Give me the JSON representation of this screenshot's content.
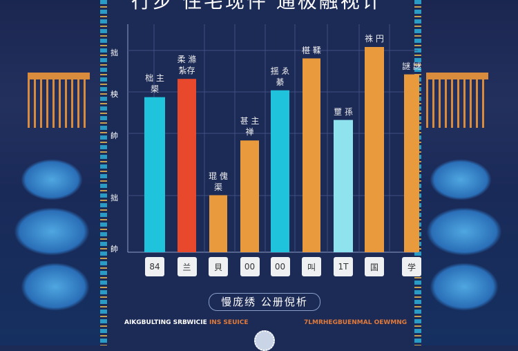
{
  "chart_data": {
    "type": "bar",
    "title": "行步 住宅现件 通极融视计",
    "categories": [
      "84",
      "兰",
      "貝",
      "00",
      "00",
      "叫",
      "1T",
      "国",
      "学"
    ],
    "values": [
      68,
      76,
      25,
      49,
      71,
      85,
      58,
      90,
      78
    ],
    "colors": [
      "#1fc4dc",
      "#e8482c",
      "#e99a3d",
      "#e99a3d",
      "#1fc4dc",
      "#e99a3d",
      "#8ee3ef",
      "#e99a3d",
      "#e99a3d"
    ],
    "bar_labels": [
      "柮 主 槼",
      "柔 滌 紮存",
      "琨 傀 渠",
      "甚 主 禅",
      "揺 ゑ 綦",
      "椹 鞣",
      "壐 孫",
      "祩 円",
      "謎 謎"
    ],
    "ytick_labels": [
      "拙",
      "柍",
      "帥",
      "拙",
      "帥"
    ],
    "ylim": [
      0,
      100
    ],
    "grid": true
  },
  "footer": {
    "badge": "慢庞绣 公册倪析",
    "left_text": "AIKGBULTING SRBWICIE",
    "left_text_accent": "INS SEUICE",
    "right_text": "7LMRHEGBUENMAL OEWMNG"
  },
  "colors": {
    "background": "#1c2a56",
    "accent_orange": "#e99a3d",
    "accent_text": "#e07a3a"
  }
}
